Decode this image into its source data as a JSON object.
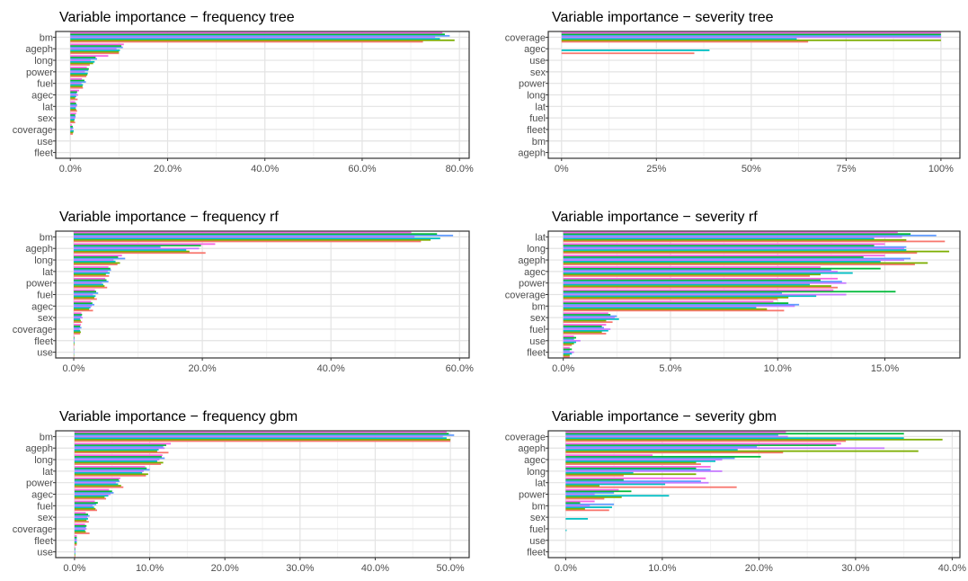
{
  "series_colors": [
    "#f8766d",
    "#7cae00",
    "#00bfc4",
    "#c77cff",
    "#619cff",
    "#00ba38",
    "#f564e3"
  ],
  "chart_data": [
    {
      "type": "bar",
      "orientation": "horizontal",
      "title": "Variable importance − frequency tree",
      "categories": [
        "bm",
        "ageph",
        "long",
        "power",
        "fuel",
        "agec",
        "lat",
        "sex",
        "coverage",
        "use",
        "fleet"
      ],
      "ticks": [
        0,
        20,
        40,
        60,
        80
      ],
      "tick_labels": [
        "0.0%",
        "20.0%",
        "40.0%",
        "60.0%",
        "80.0%"
      ],
      "xlim": [
        -3,
        82
      ],
      "values": [
        [
          72.5,
          10.0,
          4.0,
          3.3,
          2.6,
          1.5,
          1.4,
          1.0,
          0.5,
          0,
          0
        ],
        [
          79.0,
          10.0,
          4.7,
          3.5,
          2.5,
          1.0,
          1.2,
          0.8,
          0.6,
          0,
          0
        ],
        [
          76.0,
          10.2,
          5.0,
          3.6,
          2.6,
          1.2,
          1.1,
          0.9,
          0.7,
          0,
          0
        ],
        [
          75.0,
          9.5,
          4.2,
          3.0,
          2.3,
          1.6,
          1.3,
          1.0,
          0.4,
          0,
          0
        ],
        [
          78.0,
          10.8,
          5.5,
          3.7,
          3.2,
          1.3,
          1.4,
          1.1,
          0.6,
          0,
          0
        ],
        [
          77.0,
          10.5,
          5.2,
          3.8,
          2.9,
          1.4,
          1.2,
          1.0,
          0.5,
          0,
          0
        ],
        [
          76.5,
          11.0,
          7.8,
          3.4,
          2.4,
          1.8,
          1.0,
          1.2,
          0.3,
          0,
          0
        ]
      ]
    },
    {
      "type": "bar",
      "orientation": "horizontal",
      "title": "Variable importance − severity tree",
      "categories": [
        "coverage",
        "agec",
        "use",
        "sex",
        "power",
        "long",
        "lat",
        "fuel",
        "fleet",
        "bm",
        "ageph"
      ],
      "ticks": [
        0,
        25,
        50,
        75,
        100
      ],
      "tick_labels": [
        "0%",
        "25%",
        "50%",
        "75%",
        "100%"
      ],
      "xlim": [
        -3.5,
        105
      ],
      "values": [
        [
          65,
          35,
          0,
          0,
          0,
          0,
          0,
          0,
          0,
          0,
          0
        ],
        [
          100,
          0,
          0,
          0,
          0,
          0,
          0,
          0,
          0,
          0,
          0
        ],
        [
          62,
          39,
          0,
          0,
          0,
          0,
          0,
          0,
          0,
          0,
          0
        ],
        [
          100,
          0,
          0,
          0,
          0,
          0,
          0,
          0,
          0,
          0,
          0
        ],
        [
          100,
          0,
          0,
          0,
          0,
          0,
          0,
          0,
          0,
          0,
          0
        ],
        [
          100,
          0,
          0,
          0,
          0,
          0,
          0,
          0,
          0,
          0,
          0
        ],
        [
          100,
          0,
          0,
          0,
          0,
          0,
          0,
          0,
          0,
          0,
          0
        ]
      ]
    },
    {
      "type": "bar",
      "orientation": "horizontal",
      "title": "Variable importance − frequency rf",
      "categories": [
        "bm",
        "ageph",
        "long",
        "lat",
        "power",
        "fuel",
        "agec",
        "sex",
        "coverage",
        "fleet",
        "use"
      ],
      "ticks": [
        0,
        20,
        40,
        60
      ],
      "tick_labels": [
        "0.0%",
        "20.0%",
        "40.0%",
        "60.0%"
      ],
      "xlim": [
        -2.8,
        61.5
      ],
      "values": [
        [
          54.0,
          20.5,
          6.8,
          5.5,
          5.2,
          3.6,
          3.0,
          1.3,
          1.0,
          0.1,
          0.05
        ],
        [
          55.5,
          18.0,
          7.2,
          5.0,
          4.8,
          3.2,
          2.4,
          1.1,
          1.1,
          0.1,
          0.05
        ],
        [
          57.0,
          17.5,
          6.5,
          5.6,
          4.6,
          3.4,
          2.6,
          1.0,
          1.0,
          0.1,
          0.05
        ],
        [
          53.0,
          19.5,
          6.2,
          5.3,
          4.4,
          3.0,
          2.8,
          1.4,
          0.9,
          0.1,
          0.05
        ],
        [
          59.0,
          13.5,
          8.0,
          5.8,
          5.4,
          3.8,
          3.2,
          1.2,
          1.2,
          0.1,
          0.05
        ],
        [
          56.5,
          19.8,
          6.9,
          5.7,
          5.1,
          3.5,
          2.9,
          1.3,
          1.0,
          0.1,
          0.05
        ],
        [
          52.5,
          22.0,
          7.5,
          5.4,
          4.9,
          3.3,
          2.7,
          1.2,
          1.1,
          0.1,
          0.05
        ]
      ]
    },
    {
      "type": "bar",
      "orientation": "horizontal",
      "title": "Variable importance − severity rf",
      "categories": [
        "lat",
        "long",
        "ageph",
        "agec",
        "power",
        "coverage",
        "bm",
        "sex",
        "fuel",
        "use",
        "fleet"
      ],
      "ticks": [
        0,
        5,
        10,
        15
      ],
      "tick_labels": [
        "0.0%",
        "5.0%",
        "10.0%",
        "15.0%"
      ],
      "xlim": [
        -0.7,
        18.5
      ],
      "values": [
        [
          17.8,
          16.5,
          16.4,
          11.5,
          12.8,
          10.0,
          10.3,
          2.3,
          2.0,
          0.4,
          0.3
        ],
        [
          16.0,
          18.0,
          17.0,
          12.0,
          12.5,
          10.5,
          9.5,
          2.0,
          1.8,
          0.5,
          0.3
        ],
        [
          14.5,
          16.0,
          14.8,
          13.5,
          11.5,
          11.8,
          9.0,
          2.6,
          2.1,
          0.6,
          0.4
        ],
        [
          15.8,
          15.9,
          15.9,
          12.8,
          13.2,
          13.2,
          10.8,
          2.4,
          2.2,
          0.8,
          0.5
        ],
        [
          17.4,
          16.0,
          16.2,
          12.5,
          13.0,
          10.2,
          11.0,
          2.5,
          1.9,
          0.5,
          0.3
        ],
        [
          16.2,
          14.5,
          14.0,
          14.8,
          12.0,
          15.5,
          10.5,
          2.2,
          1.8,
          0.6,
          0.4
        ],
        [
          15.6,
          15.0,
          15.0,
          12.0,
          12.8,
          12.6,
          9.8,
          2.1,
          2.0,
          0.5,
          0.3
        ]
      ]
    },
    {
      "type": "bar",
      "orientation": "horizontal",
      "title": "Variable importance − frequency gbm",
      "categories": [
        "bm",
        "ageph",
        "long",
        "lat",
        "power",
        "agec",
        "fuel",
        "sex",
        "coverage",
        "fleet",
        "use"
      ],
      "ticks": [
        0,
        10,
        20,
        30,
        40,
        50
      ],
      "tick_labels": [
        "0.0%",
        "10.0%",
        "20.0%",
        "30.0%",
        "40.0%",
        "50.0%"
      ],
      "xlim": [
        -2.5,
        52.5
      ],
      "values": [
        [
          50.0,
          12.5,
          11.5,
          9.5,
          6.5,
          4.2,
          3.0,
          1.9,
          2.0,
          0.3,
          0.1
        ],
        [
          50.0,
          11.0,
          11.8,
          9.8,
          6.2,
          4.0,
          2.8,
          1.6,
          1.5,
          0.3,
          0.1
        ],
        [
          49.5,
          11.2,
          11.0,
          9.0,
          5.8,
          4.5,
          2.6,
          1.8,
          1.4,
          0.3,
          0.1
        ],
        [
          49.0,
          12.0,
          11.3,
          9.2,
          5.5,
          4.8,
          2.4,
          1.7,
          1.6,
          0.3,
          0.1
        ],
        [
          50.5,
          11.8,
          12.0,
          10.0,
          6.0,
          5.2,
          2.9,
          2.0,
          1.5,
          0.3,
          0.1
        ],
        [
          49.8,
          12.2,
          11.6,
          9.6,
          5.9,
          5.0,
          3.1,
          1.8,
          1.6,
          0.3,
          0.1
        ],
        [
          49.5,
          12.8,
          11.7,
          9.4,
          6.1,
          4.6,
          2.7,
          1.5,
          1.4,
          0.3,
          0.1
        ]
      ]
    },
    {
      "type": "bar",
      "orientation": "horizontal",
      "title": "Variable importance − severity gbm",
      "categories": [
        "coverage",
        "ageph",
        "agec",
        "long",
        "lat",
        "power",
        "bm",
        "sex",
        "fuel",
        "use",
        "fleet"
      ],
      "ticks": [
        0,
        10,
        20,
        30,
        40
      ],
      "tick_labels": [
        "0.0%",
        "10.0%",
        "20.0%",
        "30.0%",
        "40.0%"
      ],
      "xlim": [
        -1.8,
        40.8
      ],
      "values": [
        [
          29.0,
          22.5,
          14.0,
          6.0,
          17.7,
          4.0,
          4.5,
          0,
          0,
          0,
          0
        ],
        [
          39.0,
          36.5,
          13.5,
          13.5,
          3.5,
          5.8,
          2.0,
          0,
          0,
          0,
          0
        ],
        [
          35.0,
          17.8,
          15.5,
          7.0,
          10.3,
          10.7,
          4.8,
          2.3,
          0.1,
          0,
          0
        ],
        [
          23.0,
          33.0,
          16.2,
          16.2,
          14.8,
          3.0,
          2.5,
          0,
          0,
          0,
          0
        ],
        [
          22.0,
          19.8,
          17.5,
          15.0,
          14.0,
          5.0,
          5.0,
          0,
          0,
          0,
          0
        ],
        [
          35.0,
          28.0,
          20.2,
          13.5,
          6.0,
          6.8,
          1.5,
          0,
          0,
          0,
          0
        ],
        [
          22.8,
          28.5,
          9.0,
          15.0,
          14.5,
          5.5,
          3.0,
          0,
          0,
          0,
          0
        ]
      ]
    }
  ]
}
